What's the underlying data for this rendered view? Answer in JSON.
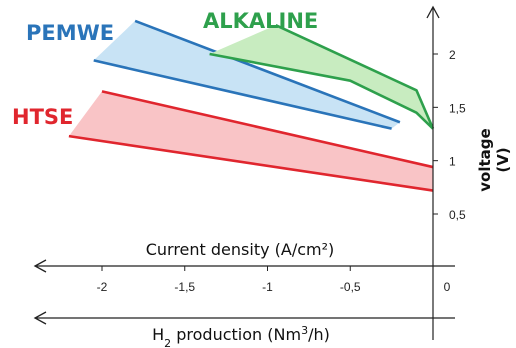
{
  "chart_data": {
    "type": "area",
    "title": "",
    "xlabel": "Current density (A/cm²)",
    "x2label_main": "H",
    "x2label_sub": "2",
    "x2label_rest": " production (Nm",
    "x2label_sup": "3",
    "x2label_end": "/h)",
    "ylabel": "voltage",
    "yunit": "(V)",
    "xlim": [
      -2.55,
      0.08
    ],
    "ylim": [
      0.3,
      2.55
    ],
    "x_ticks": [
      {
        "value": -2,
        "label": "-2"
      },
      {
        "value": -1.5,
        "label": "-1,5"
      },
      {
        "value": -1,
        "label": "-1"
      },
      {
        "value": -0.5,
        "label": "-0,5"
      },
      {
        "value": 0,
        "label": "0"
      }
    ],
    "y_ticks": [
      {
        "value": 0.5,
        "label": "0,5"
      },
      {
        "value": 1,
        "label": "1"
      },
      {
        "value": 1.5,
        "label": "1,5"
      },
      {
        "value": 2,
        "label": "2"
      }
    ],
    "series": [
      {
        "name": "PEMWE",
        "color": "#2a74b9",
        "fill": "#c8e3f5",
        "upper": [
          [
            -1.8,
            2.31
          ],
          [
            -0.2,
            1.36
          ]
        ],
        "lower": [
          [
            -2.05,
            1.94
          ],
          [
            -0.25,
            1.3
          ]
        ]
      },
      {
        "name": "ALKALINE",
        "color": "#2ea04c",
        "fill": "#c8ecc0",
        "upper": [
          [
            -0.95,
            2.27
          ],
          [
            -0.1,
            1.66
          ],
          [
            0,
            1.3
          ]
        ],
        "lower": [
          [
            -1.35,
            2.0
          ],
          [
            -0.5,
            1.75
          ],
          [
            -0.1,
            1.45
          ],
          [
            0,
            1.3
          ]
        ]
      },
      {
        "name": "HTSE",
        "color": "#e0262e",
        "fill": "#f9c4c6",
        "upper": [
          [
            -2.0,
            1.65
          ],
          [
            0,
            0.94
          ]
        ],
        "lower": [
          [
            -2.2,
            1.23
          ],
          [
            0,
            0.72
          ]
        ]
      }
    ]
  }
}
